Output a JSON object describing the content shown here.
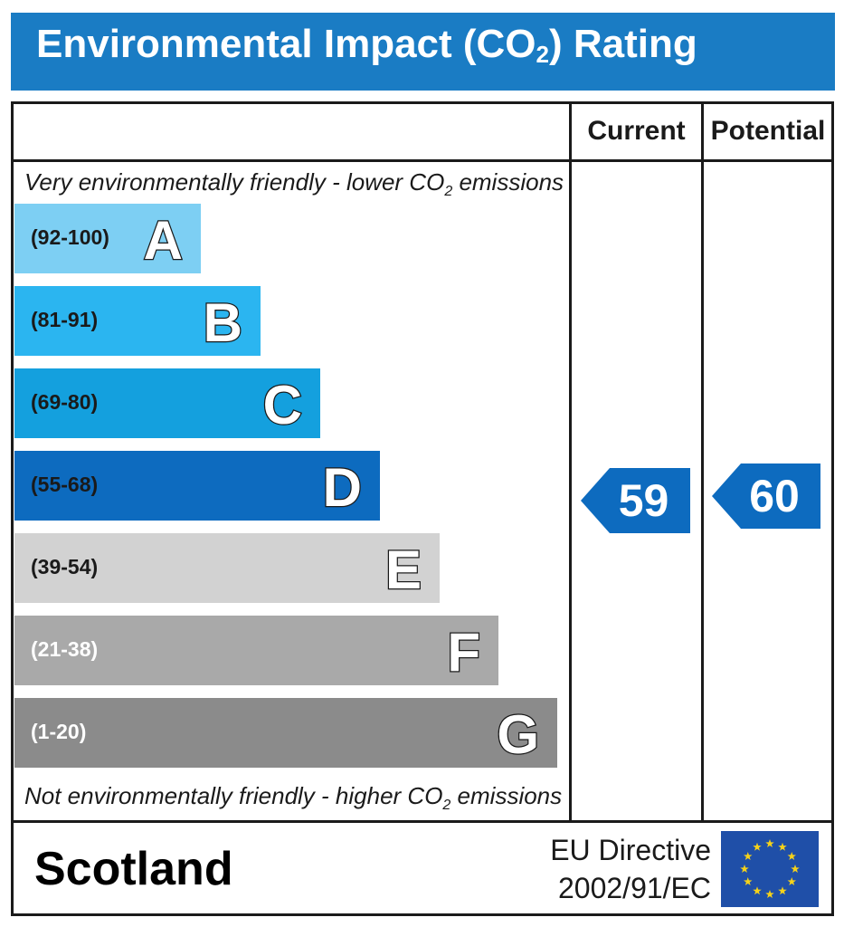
{
  "header": {
    "title_main": "Environmental Impact (CO",
    "title_sub": "2",
    "title_end": ") Rating"
  },
  "columns": {
    "current": "Current",
    "potential": "Potential"
  },
  "notes": {
    "top_main": "Very environmentally friendly - lower CO",
    "top_sub": "2",
    "top_end": " emissions",
    "bottom_main": "Not environmentally friendly - higher CO",
    "bottom_sub": "2",
    "bottom_end": " emissions"
  },
  "chart_data": {
    "type": "bar",
    "title": "Environmental Impact (CO2) Rating",
    "bands": [
      {
        "range": "(92-100)",
        "letter": "A",
        "color": "#7dcff3",
        "range_color": "#1a1a1a"
      },
      {
        "range": "(81-91)",
        "letter": "B",
        "color": "#2bb5f0",
        "range_color": "#1a1a1a"
      },
      {
        "range": "(69-80)",
        "letter": "C",
        "color": "#14a0de",
        "range_color": "#1a1a1a"
      },
      {
        "range": "(55-68)",
        "letter": "D",
        "color": "#0d6bbf",
        "range_color": "#1a1a1a"
      },
      {
        "range": "(39-54)",
        "letter": "E",
        "color": "#d2d2d2",
        "range_color": "#1a1a1a"
      },
      {
        "range": "(21-38)",
        "letter": "F",
        "color": "#a9a9a9",
        "range_color": "#ffffff"
      },
      {
        "range": "(1-20)",
        "letter": "G",
        "color": "#8b8b8b",
        "range_color": "#ffffff"
      }
    ],
    "current": 59,
    "potential": 60,
    "arrow_color": "#0d6bbf"
  },
  "footer": {
    "country": "Scotland",
    "eu_line1": "EU Directive",
    "eu_line2": "2002/91/EC"
  },
  "colors": {
    "header_bg": "#1a7cc4",
    "flag_bg": "#1f4fa8",
    "flag_star": "#f5d21a"
  }
}
